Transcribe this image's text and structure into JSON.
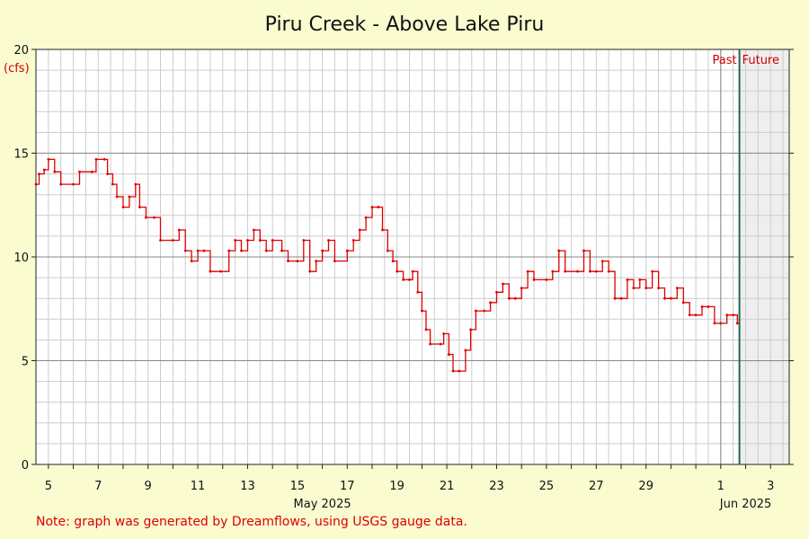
{
  "chart_data": {
    "type": "line",
    "title": "Piru Creek - Above Lake Piru",
    "y_unit": "(cfs)",
    "y_ticks": [
      0,
      5,
      10,
      15,
      20
    ],
    "ylim": [
      0,
      20
    ],
    "x_range": [
      "2025-05-04T12:00",
      "2025-06-03T18:00"
    ],
    "x_ticks": [
      {
        "date": "2025-05-05",
        "label": "5"
      },
      {
        "date": "2025-05-07",
        "label": "7"
      },
      {
        "date": "2025-05-09",
        "label": "9"
      },
      {
        "date": "2025-05-11",
        "label": "11"
      },
      {
        "date": "2025-05-13",
        "label": "13"
      },
      {
        "date": "2025-05-15",
        "label": "15"
      },
      {
        "date": "2025-05-17",
        "label": "17"
      },
      {
        "date": "2025-05-19",
        "label": "19"
      },
      {
        "date": "2025-05-21",
        "label": "21"
      },
      {
        "date": "2025-05-23",
        "label": "23"
      },
      {
        "date": "2025-05-25",
        "label": "25"
      },
      {
        "date": "2025-05-27",
        "label": "27"
      },
      {
        "date": "2025-05-29",
        "label": "29"
      },
      {
        "date": "2025-06-01",
        "label": "1"
      },
      {
        "date": "2025-06-03",
        "label": "3"
      }
    ],
    "month_labels": [
      {
        "date": "2025-05-16",
        "label": "May 2025"
      },
      {
        "date": "2025-06-02",
        "label": "Jun 2025"
      }
    ],
    "now": "2025-06-01T18:00",
    "past_label": "Past",
    "future_label": "Future",
    "grid": true,
    "series": [
      {
        "color": "#dd0000",
        "points": [
          [
            "2025-05-04T12:00",
            13.5
          ],
          [
            "2025-05-04T15:00",
            14.0
          ],
          [
            "2025-05-04T20:00",
            14.2
          ],
          [
            "2025-05-05T00:00",
            14.7
          ],
          [
            "2025-05-05T06:00",
            14.1
          ],
          [
            "2025-05-05T12:00",
            13.5
          ],
          [
            "2025-05-06T00:00",
            13.5
          ],
          [
            "2025-05-06T06:00",
            14.1
          ],
          [
            "2025-05-06T18:00",
            14.1
          ],
          [
            "2025-05-06T22:00",
            14.7
          ],
          [
            "2025-05-07T06:00",
            14.7
          ],
          [
            "2025-05-07T09:00",
            14.0
          ],
          [
            "2025-05-07T14:00",
            13.5
          ],
          [
            "2025-05-07T18:00",
            12.9
          ],
          [
            "2025-05-08T00:00",
            12.4
          ],
          [
            "2025-05-08T06:00",
            12.9
          ],
          [
            "2025-05-08T12:00",
            13.5
          ],
          [
            "2025-05-08T16:00",
            12.4
          ],
          [
            "2025-05-08T22:00",
            11.9
          ],
          [
            "2025-05-09T06:00",
            11.9
          ],
          [
            "2025-05-09T12:00",
            10.8
          ],
          [
            "2025-05-10T00:00",
            10.8
          ],
          [
            "2025-05-10T06:00",
            11.3
          ],
          [
            "2025-05-10T12:00",
            10.3
          ],
          [
            "2025-05-10T18:00",
            9.8
          ],
          [
            "2025-05-11T00:00",
            10.3
          ],
          [
            "2025-05-11T06:00",
            10.3
          ],
          [
            "2025-05-11T12:00",
            9.3
          ],
          [
            "2025-05-11T22:00",
            9.3
          ],
          [
            "2025-05-12T06:00",
            10.3
          ],
          [
            "2025-05-12T12:00",
            10.8
          ],
          [
            "2025-05-12T18:00",
            10.3
          ],
          [
            "2025-05-13T00:00",
            10.8
          ],
          [
            "2025-05-13T06:00",
            11.3
          ],
          [
            "2025-05-13T12:00",
            10.8
          ],
          [
            "2025-05-13T18:00",
            10.3
          ],
          [
            "2025-05-14T00:00",
            10.8
          ],
          [
            "2025-05-14T09:00",
            10.3
          ],
          [
            "2025-05-14T15:00",
            9.8
          ],
          [
            "2025-05-15T00:00",
            9.8
          ],
          [
            "2025-05-15T06:00",
            10.8
          ],
          [
            "2025-05-15T12:00",
            9.3
          ],
          [
            "2025-05-15T18:00",
            9.8
          ],
          [
            "2025-05-16T00:00",
            10.3
          ],
          [
            "2025-05-16T06:00",
            10.8
          ],
          [
            "2025-05-16T12:00",
            9.8
          ],
          [
            "2025-05-17T00:00",
            10.3
          ],
          [
            "2025-05-17T06:00",
            10.8
          ],
          [
            "2025-05-17T12:00",
            11.3
          ],
          [
            "2025-05-17T18:00",
            11.9
          ],
          [
            "2025-05-18T00:00",
            12.4
          ],
          [
            "2025-05-18T06:00",
            12.4
          ],
          [
            "2025-05-18T10:00",
            11.3
          ],
          [
            "2025-05-18T15:00",
            10.3
          ],
          [
            "2025-05-18T20:00",
            9.8
          ],
          [
            "2025-05-19T00:00",
            9.3
          ],
          [
            "2025-05-19T06:00",
            8.9
          ],
          [
            "2025-05-19T12:00",
            8.9
          ],
          [
            "2025-05-19T15:00",
            9.3
          ],
          [
            "2025-05-19T20:00",
            8.3
          ],
          [
            "2025-05-20T00:00",
            7.4
          ],
          [
            "2025-05-20T04:00",
            6.5
          ],
          [
            "2025-05-20T08:00",
            5.8
          ],
          [
            "2025-05-20T18:00",
            5.8
          ],
          [
            "2025-05-20T21:00",
            6.3
          ],
          [
            "2025-05-21T02:00",
            5.3
          ],
          [
            "2025-05-21T06:00",
            4.5
          ],
          [
            "2025-05-21T12:00",
            4.5
          ],
          [
            "2025-05-21T18:00",
            5.5
          ],
          [
            "2025-05-21T23:00",
            6.5
          ],
          [
            "2025-05-22T04:00",
            7.4
          ],
          [
            "2025-05-22T12:00",
            7.4
          ],
          [
            "2025-05-22T18:00",
            7.8
          ],
          [
            "2025-05-23T00:00",
            8.3
          ],
          [
            "2025-05-23T06:00",
            8.7
          ],
          [
            "2025-05-23T12:00",
            8.0
          ],
          [
            "2025-05-23T18:00",
            8.0
          ],
          [
            "2025-05-24T00:00",
            8.5
          ],
          [
            "2025-05-24T06:00",
            9.3
          ],
          [
            "2025-05-24T12:00",
            8.9
          ],
          [
            "2025-05-25T00:00",
            8.9
          ],
          [
            "2025-05-25T06:00",
            9.3
          ],
          [
            "2025-05-25T12:00",
            10.3
          ],
          [
            "2025-05-25T18:00",
            9.3
          ],
          [
            "2025-05-26T06:00",
            9.3
          ],
          [
            "2025-05-26T12:00",
            10.3
          ],
          [
            "2025-05-26T18:00",
            9.3
          ],
          [
            "2025-05-27T00:00",
            9.3
          ],
          [
            "2025-05-27T06:00",
            9.8
          ],
          [
            "2025-05-27T12:00",
            9.3
          ],
          [
            "2025-05-27T18:00",
            8.0
          ],
          [
            "2025-05-28T00:00",
            8.0
          ],
          [
            "2025-05-28T06:00",
            8.9
          ],
          [
            "2025-05-28T12:00",
            8.5
          ],
          [
            "2025-05-28T18:00",
            8.9
          ],
          [
            "2025-05-29T00:00",
            8.5
          ],
          [
            "2025-05-29T06:00",
            9.3
          ],
          [
            "2025-05-29T12:00",
            8.5
          ],
          [
            "2025-05-29T18:00",
            8.0
          ],
          [
            "2025-05-30T00:00",
            8.0
          ],
          [
            "2025-05-30T06:00",
            8.5
          ],
          [
            "2025-05-30T12:00",
            7.8
          ],
          [
            "2025-05-30T18:00",
            7.2
          ],
          [
            "2025-05-31T00:00",
            7.2
          ],
          [
            "2025-05-31T06:00",
            7.6
          ],
          [
            "2025-05-31T12:00",
            7.6
          ],
          [
            "2025-05-31T18:00",
            6.8
          ],
          [
            "2025-06-01T00:00",
            6.8
          ],
          [
            "2025-06-01T06:00",
            7.2
          ],
          [
            "2025-06-01T12:00",
            7.2
          ],
          [
            "2025-06-01T16:00",
            6.8
          ]
        ]
      }
    ]
  },
  "note": "Note: graph was generated by Dreamflows, using USGS gauge data."
}
